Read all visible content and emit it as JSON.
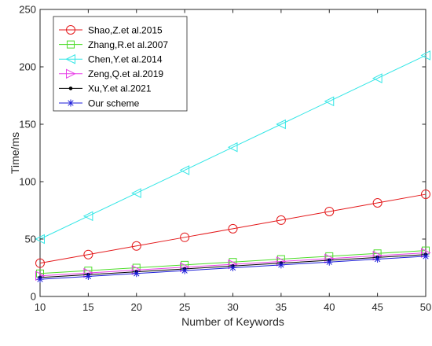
{
  "chart_data": {
    "type": "line",
    "xlabel": "Number of Keywords",
    "ylabel": "Time/ms",
    "xlim": [
      10,
      50
    ],
    "ylim": [
      0,
      250
    ],
    "xticks": [
      10,
      15,
      20,
      25,
      30,
      35,
      40,
      45,
      50
    ],
    "yticks": [
      0,
      50,
      100,
      150,
      200,
      250
    ],
    "legend_position": "top-left",
    "grid": false,
    "x": [
      10,
      15,
      20,
      25,
      30,
      35,
      40,
      45,
      50
    ],
    "series": [
      {
        "name": "Shao,Z.et al.2015",
        "color": "#e41a1c",
        "marker": "circle",
        "values": [
          29,
          36.5,
          44,
          51.5,
          59,
          66.5,
          74,
          81.5,
          89
        ]
      },
      {
        "name": "Zhang,R.et al.2007",
        "color": "#4ddc2a",
        "marker": "square",
        "values": [
          20,
          22.5,
          25,
          27.5,
          30,
          32.5,
          35,
          37.5,
          40
        ]
      },
      {
        "name": "Chen,Y.et al.2014",
        "color": "#33e6e6",
        "marker": "triangle-left",
        "values": [
          50,
          70,
          90,
          110,
          130,
          150,
          170,
          190,
          210
        ]
      },
      {
        "name": "Zeng,Q.et al.2019",
        "color": "#e83ee8",
        "marker": "triangle-right",
        "values": [
          18,
          20.5,
          23,
          25.5,
          28,
          30.5,
          33,
          35.5,
          38
        ]
      },
      {
        "name": "Xu,Y.et al.2021",
        "color": "#000000",
        "marker": "dot",
        "values": [
          16.5,
          19,
          21.5,
          24,
          26.5,
          29,
          31.5,
          34,
          36.5
        ]
      },
      {
        "name": "Our scheme",
        "color": "#1c1cd8",
        "marker": "asterisk",
        "values": [
          15,
          17.5,
          20,
          22.5,
          25,
          27.5,
          30,
          32.5,
          35
        ]
      }
    ]
  }
}
